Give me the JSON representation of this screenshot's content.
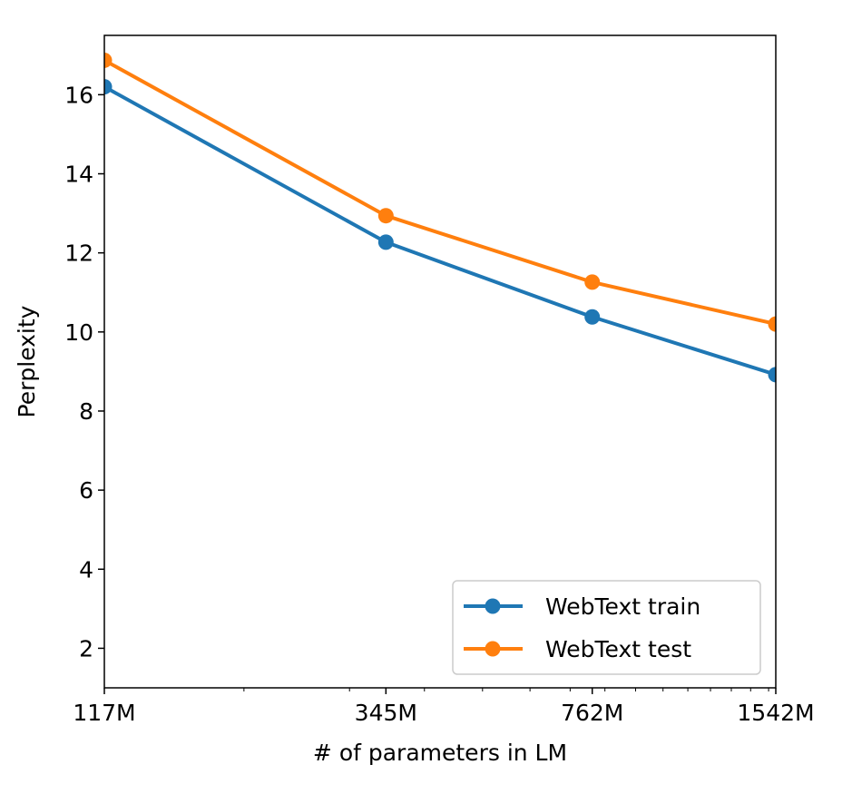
{
  "chart_data": {
    "type": "line",
    "x_scale": "log",
    "x": [
      117,
      345,
      762,
      1542
    ],
    "categories": [
      "117M",
      "345M",
      "762M",
      "1542M"
    ],
    "series": [
      {
        "name": "WebText train",
        "values": [
          16.2,
          12.27,
          10.38,
          8.92
        ],
        "color": "#1f77b4",
        "marker": "circle"
      },
      {
        "name": "WebText test",
        "values": [
          16.87,
          12.94,
          11.26,
          10.2
        ],
        "color": "#ff7f0e",
        "marker": "circle"
      }
    ],
    "title": "",
    "xlabel": "# of parameters in LM",
    "ylabel": "Perplexity",
    "xlim": [
      117,
      1542
    ],
    "ylim": [
      1,
      17.5
    ],
    "yticks": [
      2,
      4,
      6,
      8,
      10,
      12,
      14,
      16
    ],
    "grid": false,
    "legend_position": "lower-right"
  }
}
